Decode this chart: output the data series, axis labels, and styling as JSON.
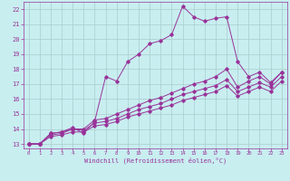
{
  "title": "",
  "xlabel": "Windchill (Refroidissement éolien,°C)",
  "bg_color": "#c8eef0",
  "line_color": "#993399",
  "grid_color": "#aacccc",
  "xlim": [
    -0.5,
    23.5
  ],
  "ylim": [
    12.7,
    22.5
  ],
  "xticks": [
    0,
    1,
    2,
    3,
    4,
    5,
    6,
    7,
    8,
    9,
    10,
    11,
    12,
    13,
    14,
    15,
    16,
    17,
    18,
    19,
    20,
    21,
    22,
    23
  ],
  "yticks": [
    13,
    14,
    15,
    16,
    17,
    18,
    19,
    20,
    21,
    22
  ],
  "s1_x": [
    0,
    1,
    2,
    3,
    4,
    5,
    6,
    7,
    8,
    9,
    10,
    11,
    12,
    13,
    14,
    15,
    16,
    17,
    18,
    19,
    20,
    21,
    22,
    23
  ],
  "s1_y": [
    13.0,
    13.0,
    13.7,
    13.8,
    14.1,
    13.7,
    14.5,
    17.5,
    17.2,
    18.5,
    19.0,
    19.7,
    19.9,
    20.3,
    22.2,
    21.5,
    21.2,
    21.4,
    21.5,
    18.5,
    17.5,
    17.8,
    17.1,
    17.8
  ],
  "s2_x": [
    0,
    1,
    2,
    3,
    4,
    5,
    6,
    7,
    8,
    9,
    10,
    11,
    12,
    13,
    14,
    15,
    16,
    17,
    18,
    19,
    20,
    21,
    22,
    23
  ],
  "s2_y": [
    13.0,
    13.0,
    13.7,
    13.8,
    14.0,
    14.0,
    14.6,
    14.7,
    15.0,
    15.3,
    15.6,
    15.9,
    16.1,
    16.4,
    16.7,
    17.0,
    17.2,
    17.5,
    18.0,
    16.8,
    17.2,
    17.5,
    17.0,
    17.8
  ],
  "s3_x": [
    0,
    1,
    2,
    3,
    4,
    5,
    6,
    7,
    8,
    9,
    10,
    11,
    12,
    13,
    14,
    15,
    16,
    17,
    18,
    19,
    20,
    21,
    22,
    23
  ],
  "s3_y": [
    13.0,
    13.0,
    13.6,
    13.7,
    14.0,
    13.9,
    14.4,
    14.5,
    14.7,
    15.0,
    15.3,
    15.5,
    15.7,
    16.0,
    16.3,
    16.5,
    16.7,
    16.9,
    17.3,
    16.5,
    16.8,
    17.1,
    16.8,
    17.5
  ],
  "s4_x": [
    0,
    1,
    2,
    3,
    4,
    5,
    6,
    7,
    8,
    9,
    10,
    11,
    12,
    13,
    14,
    15,
    16,
    17,
    18,
    19,
    20,
    21,
    22,
    23
  ],
  "s4_y": [
    13.0,
    13.0,
    13.5,
    13.6,
    13.8,
    13.8,
    14.2,
    14.3,
    14.5,
    14.8,
    15.0,
    15.2,
    15.4,
    15.6,
    15.9,
    16.1,
    16.3,
    16.5,
    16.9,
    16.2,
    16.5,
    16.8,
    16.5,
    17.2
  ]
}
